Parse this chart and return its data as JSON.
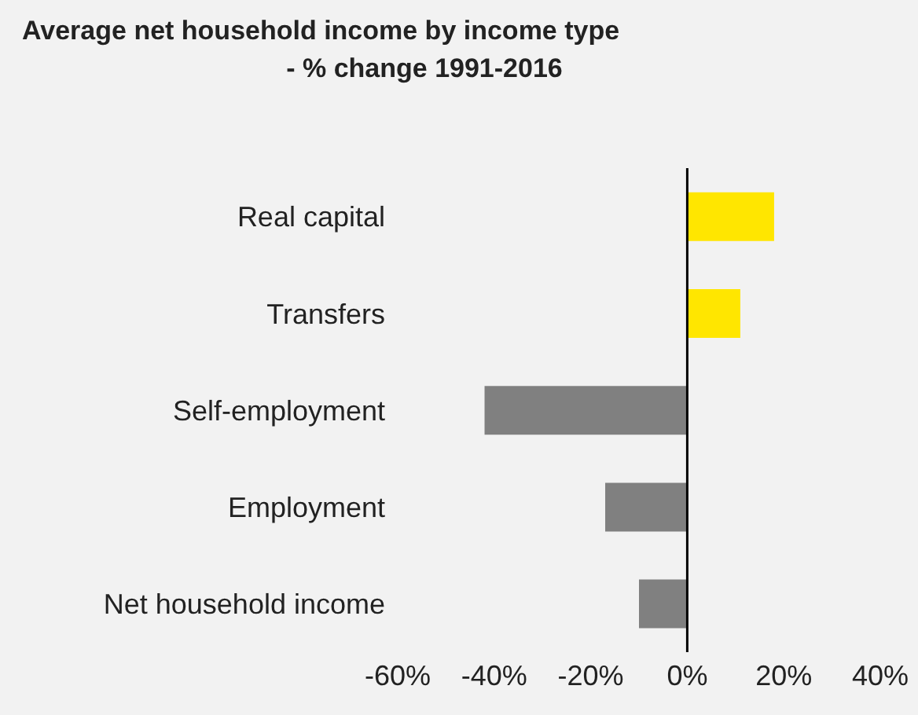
{
  "chart_data": {
    "type": "bar",
    "orientation": "horizontal",
    "title": "Average net household income by income type",
    "subtitle": "- % change 1991-2016",
    "categories": [
      "Real capital",
      "Transfers",
      "Self-employment",
      "Employment",
      "Net household income"
    ],
    "values": [
      18,
      11,
      -42,
      -17,
      -10
    ],
    "colors": [
      "#ffe600",
      "#ffe600",
      "#808080",
      "#808080",
      "#808080"
    ],
    "xlim": [
      -60,
      40
    ],
    "xticks": [
      {
        "value": -60,
        "label": "-60%"
      },
      {
        "value": -40,
        "label": "-40%"
      },
      {
        "value": -20,
        "label": "-20%"
      },
      {
        "value": 0,
        "label": "0%"
      },
      {
        "value": 20,
        "label": "20%"
      },
      {
        "value": 40,
        "label": "40%"
      }
    ],
    "ref_lines": [
      {
        "axis": "x",
        "value": 0,
        "color": "#000000"
      }
    ],
    "grid": false,
    "legend": false
  }
}
